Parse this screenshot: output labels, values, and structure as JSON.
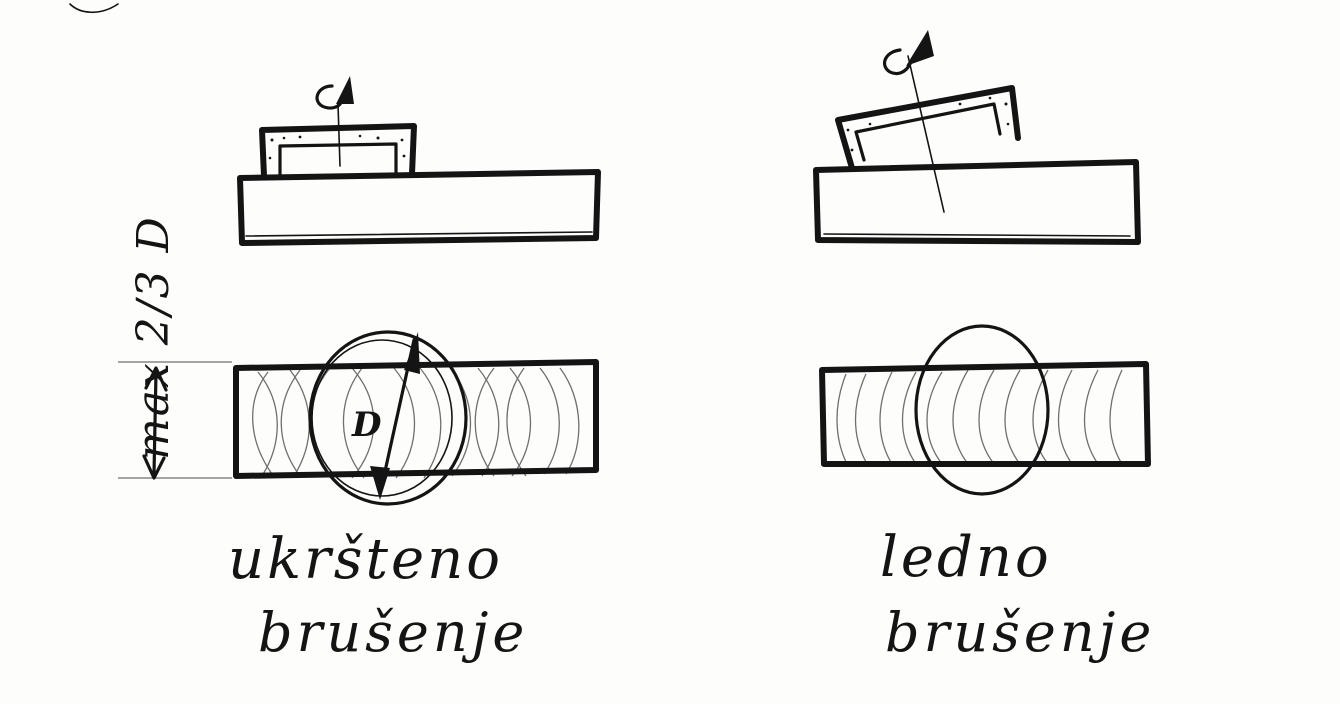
{
  "labels": {
    "dimension": "max 2/3 D",
    "diameter": "D",
    "left_caption_line1": "ukršteno",
    "left_caption_line2": "brušenje",
    "right_caption_line1": "ledno",
    "right_caption_line2": "brušenje"
  },
  "colors": {
    "ink": "#141414",
    "paper": "#fdfdfb"
  }
}
